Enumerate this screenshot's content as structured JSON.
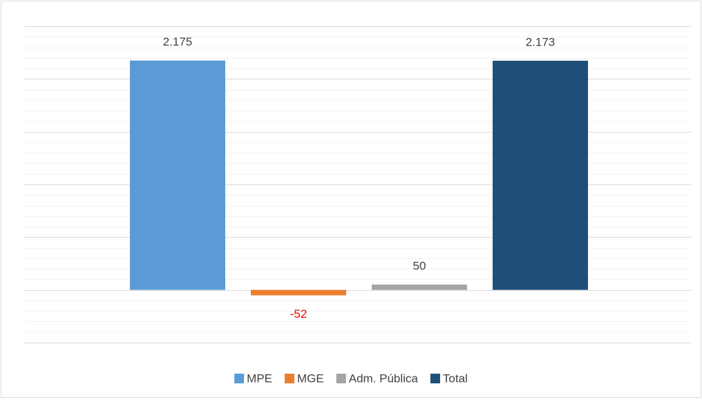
{
  "chart_data": {
    "type": "bar",
    "categories": [
      null
    ],
    "series": [
      {
        "name": "MPE",
        "color": "#5b9bd5",
        "values": [
          2175
        ],
        "value_labels": [
          "2.175"
        ],
        "label_color": "#404040"
      },
      {
        "name": "MGE",
        "color": "#ed7d31",
        "values": [
          -52
        ],
        "value_labels": [
          "-52"
        ],
        "label_color": "#ff0000"
      },
      {
        "name": "Adm. Pública",
        "color": "#a5a5a5",
        "values": [
          50
        ],
        "value_labels": [
          "50"
        ],
        "label_color": "#404040"
      },
      {
        "name": "Total",
        "color": "#1f4e79",
        "values": [
          2173
        ],
        "value_labels": [
          "2.173"
        ],
        "label_color": "#404040"
      }
    ],
    "ylim": [
      -500,
      2500
    ],
    "yticks": [
      -500,
      0,
      500,
      1000,
      1500,
      2000,
      2500
    ],
    "yminor_ticks": [
      -400,
      -300,
      -200,
      -100,
      100,
      200,
      300,
      400,
      600,
      700,
      800,
      900,
      1100,
      1200,
      1300,
      1400,
      1600,
      1700,
      1800,
      1900,
      2100,
      2200,
      2300,
      2400
    ],
    "grid": true,
    "legend": "bottom"
  }
}
